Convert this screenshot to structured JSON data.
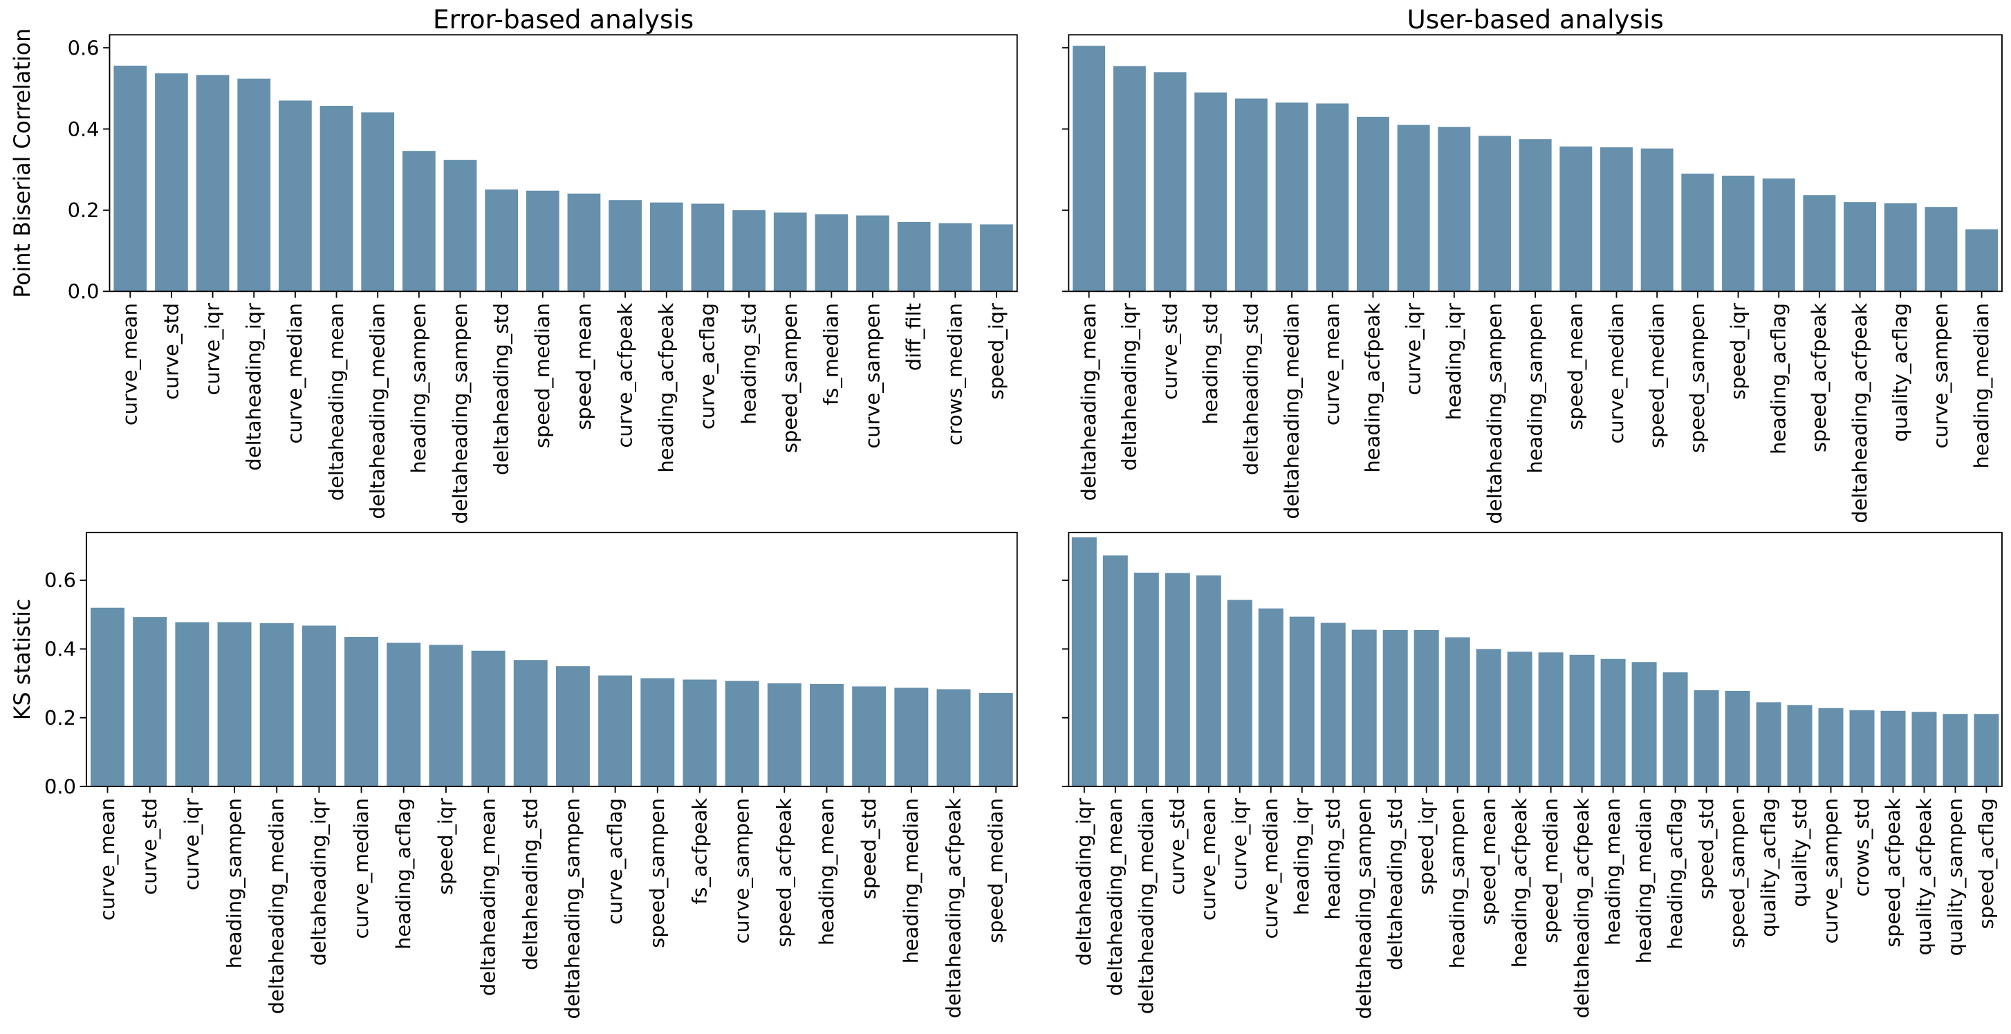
{
  "chart_data": [
    {
      "type": "bar",
      "title": "Error-based analysis",
      "ylabel": "Point Biserial Correlation",
      "color": "#6690ac",
      "categories": [
        "curve_mean",
        "curve_std",
        "curve_iqr",
        "deltaheading_iqr",
        "curve_median",
        "deltaheading_mean",
        "deltaheading_median",
        "heading_sampen",
        "deltaheading_sampen",
        "deltaheading_std",
        "speed_median",
        "speed_mean",
        "curve_acfpeak",
        "heading_acfpeak",
        "curve_acflag",
        "heading_std",
        "speed_sampen",
        "fs_median",
        "curve_sampen",
        "diff_filt",
        "crows_median",
        "speed_iqr"
      ],
      "values": [
        0.556,
        0.537,
        0.533,
        0.524,
        0.47,
        0.457,
        0.441,
        0.346,
        0.324,
        0.251,
        0.248,
        0.241,
        0.225,
        0.219,
        0.216,
        0.2,
        0.194,
        0.19,
        0.187,
        0.171,
        0.168,
        0.165
      ],
      "ylim": [
        0,
        0.632
      ],
      "yticks": [
        {
          "value": 0,
          "label": "0.0"
        },
        0.2,
        0.4,
        0.6
      ]
    },
    {
      "type": "bar",
      "title": "User-based analysis",
      "color": "#6690ac",
      "categories": [
        "deltaheading_mean",
        "deltaheading_iqr",
        "curve_std",
        "heading_std",
        "deltaheading_std",
        "deltaheading_median",
        "curve_mean",
        "heading_acfpeak",
        "curve_iqr",
        "heading_iqr",
        "deltaheading_sampen",
        "heading_sampen",
        "speed_mean",
        "curve_median",
        "speed_median",
        "speed_sampen",
        "speed_iqr",
        "heading_acflag",
        "speed_acfpeak",
        "deltaheading_acfpeak",
        "quality_acflag",
        "curve_sampen",
        "heading_median"
      ],
      "values": [
        0.605,
        0.555,
        0.54,
        0.49,
        0.475,
        0.465,
        0.463,
        0.43,
        0.41,
        0.405,
        0.383,
        0.375,
        0.357,
        0.355,
        0.352,
        0.29,
        0.285,
        0.278,
        0.237,
        0.22,
        0.217,
        0.208,
        0.153
      ],
      "ylim": [
        0,
        0.632
      ]
    },
    {
      "type": "bar",
      "ylabel": "KS statistic",
      "color": "#6690ac",
      "categories": [
        "curve_mean",
        "curve_std",
        "curve_iqr",
        "heading_sampen",
        "deltaheading_median",
        "deltaheading_iqr",
        "curve_median",
        "heading_acflag",
        "speed_iqr",
        "deltaheading_mean",
        "deltaheading_std",
        "deltaheading_sampen",
        "curve_acflag",
        "speed_sampen",
        "fs_acfpeak",
        "curve_sampen",
        "speed_acfpeak",
        "heading_mean",
        "speed_std",
        "heading_median",
        "deltaheading_acfpeak",
        "speed_median"
      ],
      "values": [
        0.52,
        0.493,
        0.478,
        0.478,
        0.475,
        0.468,
        0.435,
        0.418,
        0.412,
        0.395,
        0.368,
        0.35,
        0.323,
        0.315,
        0.311,
        0.307,
        0.3,
        0.298,
        0.291,
        0.287,
        0.283,
        0.272
      ],
      "ylim": [
        0,
        0.739
      ],
      "yticks": [
        {
          "value": 0,
          "label": "0.0"
        },
        0.2,
        0.4,
        0.6
      ]
    },
    {
      "type": "bar",
      "color": "#6690ac",
      "categories": [
        "deltaheading_iqr",
        "deltaheading_mean",
        "deltaheading_median",
        "curve_std",
        "curve_mean",
        "curve_iqr",
        "curve_median",
        "heading_iqr",
        "heading_std",
        "deltaheading_sampen",
        "deltaheading_std",
        "speed_iqr",
        "heading_sampen",
        "speed_mean",
        "heading_acfpeak",
        "speed_median",
        "deltaheading_acfpeak",
        "heading_mean",
        "heading_median",
        "heading_acflag",
        "speed_std",
        "speed_sampen",
        "quality_acflag",
        "quality_std",
        "curve_sampen",
        "crows_std",
        "speed_acfpeak",
        "quality_acfpeak",
        "quality_sampen",
        "speed_acflag"
      ],
      "values": [
        0.725,
        0.672,
        0.622,
        0.621,
        0.614,
        0.543,
        0.518,
        0.494,
        0.476,
        0.456,
        0.455,
        0.455,
        0.434,
        0.4,
        0.392,
        0.39,
        0.383,
        0.371,
        0.362,
        0.332,
        0.28,
        0.278,
        0.245,
        0.237,
        0.228,
        0.222,
        0.22,
        0.217,
        0.211,
        0.211
      ],
      "ylim": [
        0,
        0.739
      ]
    }
  ]
}
